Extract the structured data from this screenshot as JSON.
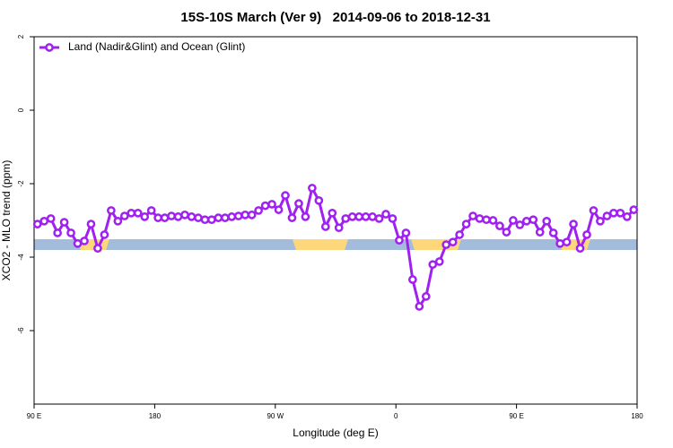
{
  "chart_data": {
    "type": "line",
    "title": "15S-10S March (Ver 9)   2014-09-06 to 2018-12-31",
    "x_label": "Longitude (deg E)",
    "y_label": "XCO2 - MLO trend (ppm)",
    "xlim": [
      90,
      540
    ],
    "ylim": [
      -8,
      2
    ],
    "xticks": [
      {
        "value": 90,
        "label": "90 E"
      },
      180,
      {
        "value": 270,
        "label": "90 W"
      },
      {
        "value": 360,
        "label": "0"
      },
      {
        "value": 450,
        "label": "90 E"
      },
      {
        "value": 540,
        "label": "180"
      }
    ],
    "yticks": [
      -6,
      -4,
      -2,
      0,
      2
    ],
    "legend_position": "top-left",
    "x": [
      92.5,
      97.5,
      102.5,
      107.5,
      112.5,
      117.5,
      122.5,
      127.5,
      132.5,
      137.5,
      142.5,
      147.5,
      152.5,
      157.5,
      162.5,
      167.5,
      172.5,
      177.5,
      182.5,
      187.5,
      192.5,
      197.5,
      202.5,
      207.5,
      212.5,
      217.5,
      222.5,
      227.5,
      232.5,
      237.5,
      242.5,
      247.5,
      252.5,
      257.5,
      262.5,
      267.5,
      272.5,
      277.5,
      282.5,
      287.5,
      292.5,
      297.5,
      302.5,
      307.5,
      312.5,
      317.5,
      322.5,
      327.5,
      332.5,
      337.5,
      342.5,
      347.5,
      352.5,
      357.5,
      362.5,
      367.5,
      372.5,
      377.5,
      382.5,
      387.5,
      392.5,
      397.5,
      402.5,
      407.5,
      412.5,
      417.5,
      422.5,
      427.5,
      432.5,
      437.5,
      442.5,
      447.5,
      452.5,
      457.5,
      462.5,
      467.5,
      472.5,
      477.5,
      482.5,
      487.5,
      492.5,
      497.5,
      502.5,
      507.5,
      512.5,
      517.5,
      522.5,
      527.5,
      532.5,
      537.5
    ],
    "series": [
      {
        "name": "Land (Nadir&Glint) and Ocean (Glint)",
        "color": "#a020f0",
        "values": [
          -3.1,
          -3.02,
          -2.95,
          -3.34,
          -3.05,
          -3.34,
          -3.63,
          -3.56,
          -3.1,
          -3.76,
          -3.39,
          -2.73,
          -3.02,
          -2.88,
          -2.8,
          -2.8,
          -2.9,
          -2.73,
          -2.93,
          -2.93,
          -2.88,
          -2.9,
          -2.85,
          -2.9,
          -2.93,
          -2.98,
          -2.98,
          -2.93,
          -2.93,
          -2.9,
          -2.88,
          -2.85,
          -2.85,
          -2.73,
          -2.6,
          -2.56,
          -2.71,
          -2.32,
          -2.93,
          -2.54,
          -2.9,
          -2.12,
          -2.46,
          -3.17,
          -2.8,
          -3.2,
          -2.95,
          -2.9,
          -2.9,
          -2.9,
          -2.9,
          -2.95,
          -2.83,
          -2.95,
          -3.54,
          -3.34,
          -4.61,
          -5.34,
          -5.07,
          -4.2,
          -4.12,
          -3.66,
          -3.59,
          -3.39,
          -3.1,
          -2.88,
          -2.95,
          -2.98,
          -3.0,
          -3.15,
          -3.32,
          -3.0,
          -3.12,
          -3.02,
          -2.98,
          -3.32,
          -3.02,
          -3.34,
          -3.63,
          -3.59,
          -3.1,
          -3.76,
          -3.39,
          -2.73,
          -3.02,
          -2.88,
          -2.8,
          -2.8,
          -2.9,
          -2.71
        ]
      }
    ]
  }
}
